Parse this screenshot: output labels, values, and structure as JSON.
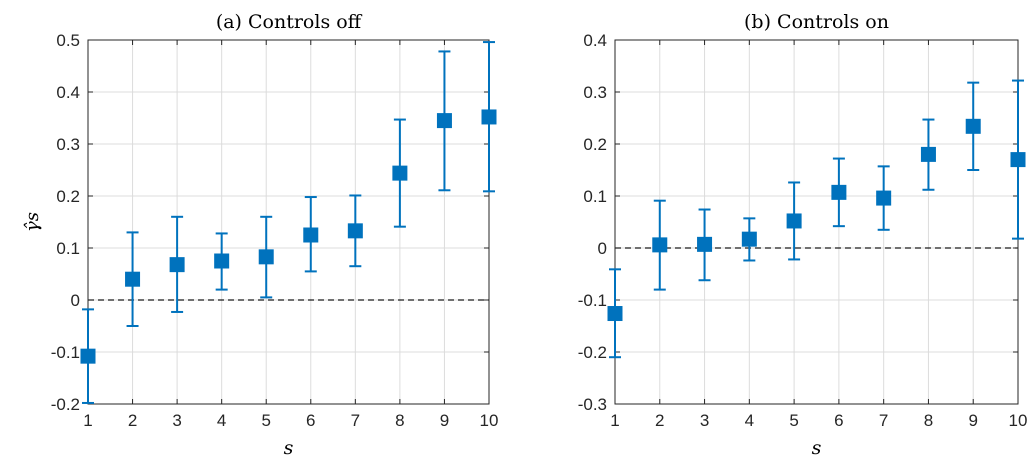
{
  "chart_data": [
    {
      "type": "scatter",
      "title": "(a) Controls off",
      "xlabel": "s",
      "ylabel": "γ̂s",
      "xlim": [
        1,
        10
      ],
      "ylim": [
        -0.2,
        0.5
      ],
      "xticks": [
        1,
        2,
        3,
        4,
        5,
        6,
        7,
        8,
        9,
        10
      ],
      "yticks": [
        -0.2,
        -0.1,
        0,
        0.1,
        0.2,
        0.3,
        0.4,
        0.5
      ],
      "ytick_labels": [
        "-0.2",
        "-0.1",
        "0",
        "0.1",
        "0.2",
        "0.3",
        "0.4",
        "0.5"
      ],
      "grid": true,
      "reference_line": 0,
      "marker": "square",
      "color": "#0072BD",
      "x": [
        1,
        2,
        3,
        4,
        5,
        6,
        7,
        8,
        9,
        10
      ],
      "y": [
        -0.108,
        0.04,
        0.068,
        0.075,
        0.083,
        0.125,
        0.133,
        0.244,
        0.345,
        0.352
      ],
      "lower": [
        -0.198,
        -0.05,
        -0.023,
        0.02,
        0.005,
        0.055,
        0.065,
        0.141,
        0.211,
        0.209
      ],
      "upper": [
        -0.018,
        0.13,
        0.16,
        0.128,
        0.16,
        0.198,
        0.201,
        0.347,
        0.478,
        0.496
      ]
    },
    {
      "type": "scatter",
      "title": "(b) Controls on",
      "xlabel": "s",
      "xlim": [
        1,
        10
      ],
      "ylim": [
        -0.3,
        0.4
      ],
      "xticks": [
        1,
        2,
        3,
        4,
        5,
        6,
        7,
        8,
        9,
        10
      ],
      "yticks": [
        -0.3,
        -0.2,
        -0.1,
        0,
        0.1,
        0.2,
        0.3,
        0.4
      ],
      "ytick_labels": [
        "-0.3",
        "-0.2",
        "-0.1",
        "0",
        "0.1",
        "0.2",
        "0.3",
        "0.4"
      ],
      "grid": true,
      "reference_line": 0,
      "marker": "square",
      "color": "#0072BD",
      "x": [
        1,
        2,
        3,
        4,
        5,
        6,
        7,
        8,
        9,
        10
      ],
      "y": [
        -0.126,
        0.006,
        0.007,
        0.017,
        0.052,
        0.107,
        0.096,
        0.18,
        0.234,
        0.17
      ],
      "lower": [
        -0.21,
        -0.08,
        -0.062,
        -0.024,
        -0.022,
        0.042,
        0.035,
        0.112,
        0.15,
        0.018
      ],
      "upper": [
        -0.041,
        0.091,
        0.074,
        0.057,
        0.126,
        0.172,
        0.157,
        0.247,
        0.318,
        0.322
      ]
    }
  ]
}
